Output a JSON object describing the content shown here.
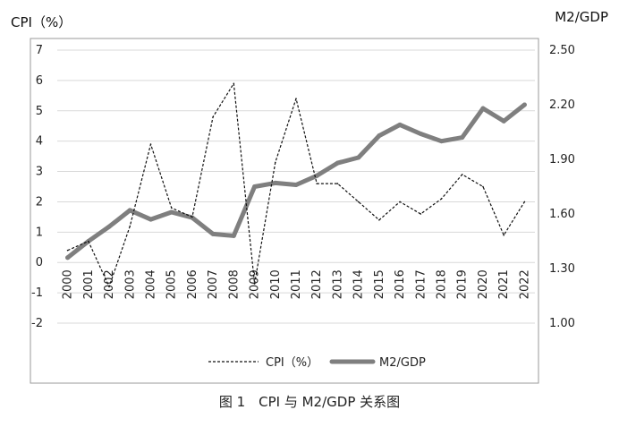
{
  "chart_data": {
    "type": "line",
    "left_axis_label": "CPI（%）",
    "right_axis_label": "M2/GDP",
    "caption": "图 1　CPI 与 M2/GDP 关系图",
    "categories": [
      "2000",
      "2001",
      "2002",
      "2003",
      "2004",
      "2005",
      "2006",
      "2007",
      "2008",
      "2009",
      "2010",
      "2011",
      "2012",
      "2013",
      "2014",
      "2015",
      "2016",
      "2017",
      "2018",
      "2019",
      "2020",
      "2021",
      "2022"
    ],
    "left_axis": {
      "min": -2,
      "max": 7,
      "ticks": [
        "-2",
        "-1",
        "0",
        "1",
        "2",
        "3",
        "4",
        "5",
        "6",
        "7"
      ]
    },
    "right_axis": {
      "min": 1.0,
      "max": 2.5,
      "ticks": [
        "1.00",
        "1.30",
        "1.60",
        "1.90",
        "2.20",
        "2.50"
      ]
    },
    "grid": true,
    "legend_position": "bottom",
    "series": [
      {
        "name": "CPI（%）",
        "axis": "left",
        "style": "dashed",
        "color": "#111111",
        "values": [
          0.4,
          0.7,
          -0.8,
          1.2,
          3.9,
          1.8,
          1.5,
          4.8,
          5.9,
          -0.7,
          3.3,
          5.4,
          2.6,
          2.6,
          2.0,
          1.4,
          2.0,
          1.6,
          2.1,
          2.9,
          2.5,
          0.9,
          2.0
        ]
      },
      {
        "name": "M2/GDP",
        "axis": "right",
        "style": "solid",
        "color": "#7f7f7f",
        "values": [
          1.36,
          1.45,
          1.53,
          1.62,
          1.57,
          1.61,
          1.58,
          1.49,
          1.48,
          1.75,
          1.77,
          1.76,
          1.81,
          1.88,
          1.91,
          2.03,
          2.09,
          2.04,
          2.0,
          2.02,
          2.18,
          2.11,
          2.2
        ]
      }
    ]
  }
}
